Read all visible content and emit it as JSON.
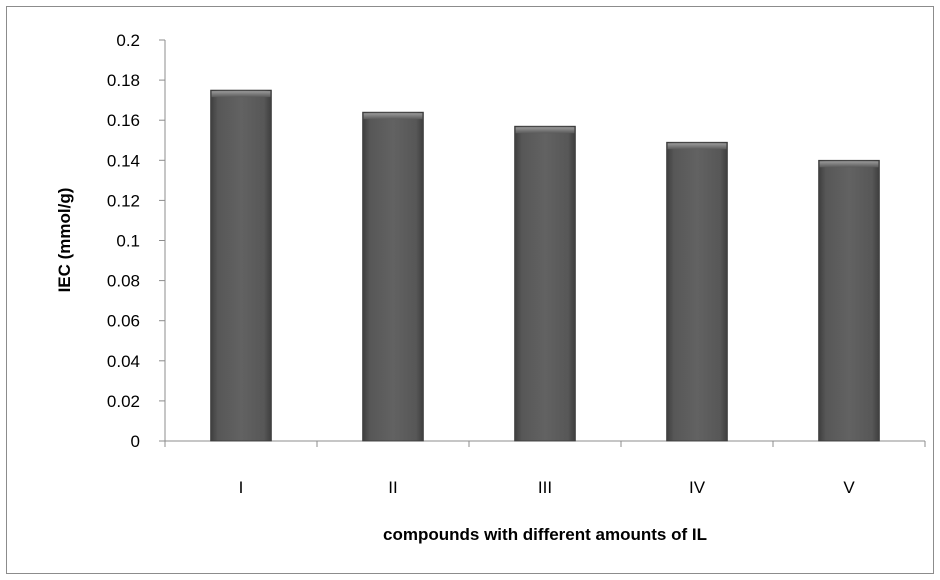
{
  "chart_data": {
    "type": "bar",
    "title": "",
    "xlabel": "compounds with different amounts of IL",
    "ylabel": "IEC (mmol/g)",
    "categories": [
      "I",
      "II",
      "III",
      "IV",
      "V"
    ],
    "values": [
      0.175,
      0.164,
      0.157,
      0.149,
      0.14
    ],
    "ylim": [
      0,
      0.2
    ],
    "yticks": [
      "0",
      "0.02",
      "0.04",
      "0.06",
      "0.08",
      "0.1",
      "0.12",
      "0.14",
      "0.16",
      "0.18",
      "0.2"
    ],
    "grid": false,
    "legend": "none",
    "bar_color": "#595959",
    "bar_edge_color": "#3a3a3a"
  }
}
